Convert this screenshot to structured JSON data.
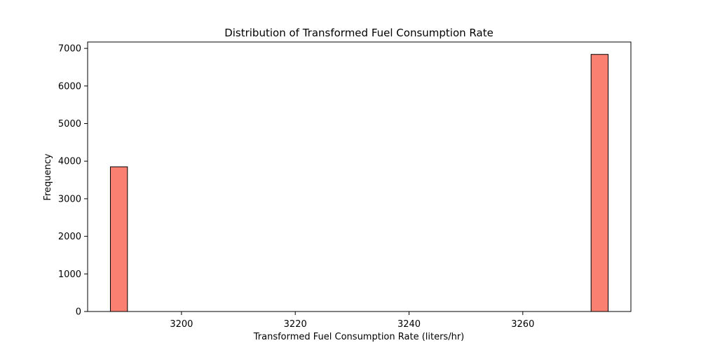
{
  "chart_data": {
    "type": "bar",
    "title": "Distribution of Transformed Fuel Consumption Rate",
    "xlabel": "Transformed Fuel Consumption Rate (liters/hr)",
    "ylabel": "Frequency",
    "xlim": [
      3183.5,
      3279
    ],
    "ylim": [
      0,
      7170
    ],
    "xticks": [
      3200,
      3220,
      3240,
      3260
    ],
    "yticks": [
      0,
      1000,
      2000,
      3000,
      4000,
      5000,
      6000,
      7000
    ],
    "bins": [
      {
        "x0": 3187.5,
        "x1": 3190.5,
        "value": 3850
      },
      {
        "x0": 3272.0,
        "x1": 3275.0,
        "value": 6840
      }
    ],
    "grid": false,
    "legend": false,
    "colors": {
      "bar_fill": "#fa8072",
      "bar_edge": "#000000",
      "axis": "#000000",
      "text": "#000000"
    }
  }
}
